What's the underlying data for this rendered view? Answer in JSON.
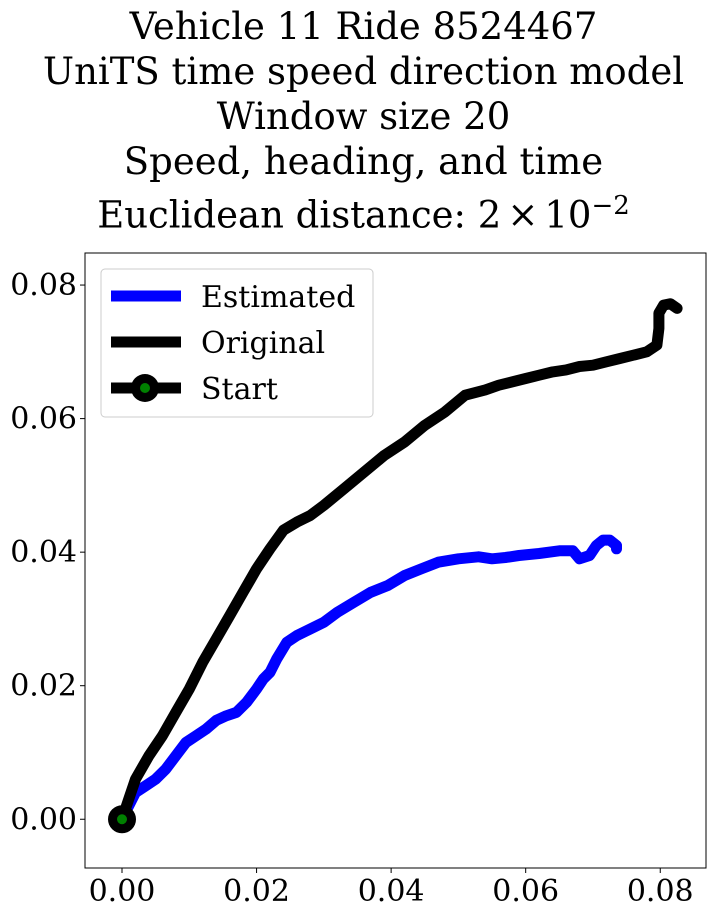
{
  "chart_data": {
    "type": "line",
    "title_lines": [
      "Vehicle 11 Ride 8524467",
      "UniTS time speed direction model",
      "Window size 20",
      "Speed, heading, and time"
    ],
    "title_metric_prefix": "Euclidean distance: ",
    "title_metric_mantissa": "2",
    "title_metric_times": "×",
    "title_metric_base": "10",
    "title_metric_exponent": "−2",
    "xlim": [
      -0.0055,
      0.0868
    ],
    "ylim": [
      -0.0073,
      0.0848
    ],
    "x_ticks": [
      "0.00",
      "0.02",
      "0.04",
      "0.06",
      "0.08"
    ],
    "x_tick_values": [
      0.0,
      0.02,
      0.04,
      0.06,
      0.08
    ],
    "y_ticks": [
      "0.00",
      "0.02",
      "0.04",
      "0.06",
      "0.08"
    ],
    "y_tick_values": [
      0.0,
      0.02,
      0.04,
      0.06,
      0.08
    ],
    "legend_position": "upper-left",
    "series": [
      {
        "name": "Estimated",
        "color": "#0000ff",
        "x": [
          0.0,
          0.001,
          0.002,
          0.0035,
          0.005,
          0.0065,
          0.008,
          0.0095,
          0.011,
          0.0125,
          0.014,
          0.0155,
          0.017,
          0.0185,
          0.02,
          0.021,
          0.022,
          0.023,
          0.0245,
          0.026,
          0.028,
          0.03,
          0.032,
          0.0345,
          0.037,
          0.0395,
          0.042,
          0.0445,
          0.047,
          0.05,
          0.053,
          0.055,
          0.057,
          0.059,
          0.062,
          0.065,
          0.067,
          0.068,
          0.0695,
          0.0705,
          0.0715,
          0.0725,
          0.0735,
          0.0735
        ],
        "y": [
          0.0,
          0.002,
          0.004,
          0.005,
          0.006,
          0.0075,
          0.0095,
          0.0115,
          0.0125,
          0.0135,
          0.0148,
          0.0155,
          0.016,
          0.0175,
          0.0195,
          0.021,
          0.022,
          0.024,
          0.0265,
          0.0275,
          0.0285,
          0.0295,
          0.031,
          0.0325,
          0.034,
          0.035,
          0.0365,
          0.0375,
          0.0385,
          0.039,
          0.0393,
          0.039,
          0.0392,
          0.0395,
          0.0398,
          0.0402,
          0.0402,
          0.039,
          0.0395,
          0.041,
          0.0418,
          0.0418,
          0.041,
          0.0405
        ]
      },
      {
        "name": "Original",
        "color": "#000000",
        "x": [
          0.0,
          0.001,
          0.002,
          0.004,
          0.006,
          0.008,
          0.01,
          0.012,
          0.014,
          0.016,
          0.018,
          0.02,
          0.022,
          0.024,
          0.026,
          0.028,
          0.03,
          0.033,
          0.036,
          0.039,
          0.042,
          0.045,
          0.048,
          0.051,
          0.054,
          0.056,
          0.058,
          0.06,
          0.062,
          0.064,
          0.066,
          0.068,
          0.07,
          0.072,
          0.074,
          0.076,
          0.078,
          0.0795,
          0.0798,
          0.0798,
          0.0805,
          0.0815,
          0.0825
        ],
        "y": [
          0.0,
          0.003,
          0.006,
          0.0095,
          0.0125,
          0.016,
          0.0195,
          0.0235,
          0.027,
          0.0305,
          0.034,
          0.0375,
          0.0405,
          0.0433,
          0.0445,
          0.0455,
          0.047,
          0.0495,
          0.052,
          0.0545,
          0.0565,
          0.059,
          0.061,
          0.0635,
          0.0643,
          0.065,
          0.0655,
          0.066,
          0.0665,
          0.067,
          0.0673,
          0.0678,
          0.068,
          0.0685,
          0.069,
          0.0695,
          0.07,
          0.071,
          0.0735,
          0.0758,
          0.077,
          0.0772,
          0.0765
        ]
      },
      {
        "name": "Start",
        "color": "#000000",
        "marker_color": "#008000",
        "x": [
          0.0
        ],
        "y": [
          0.0
        ]
      }
    ]
  }
}
